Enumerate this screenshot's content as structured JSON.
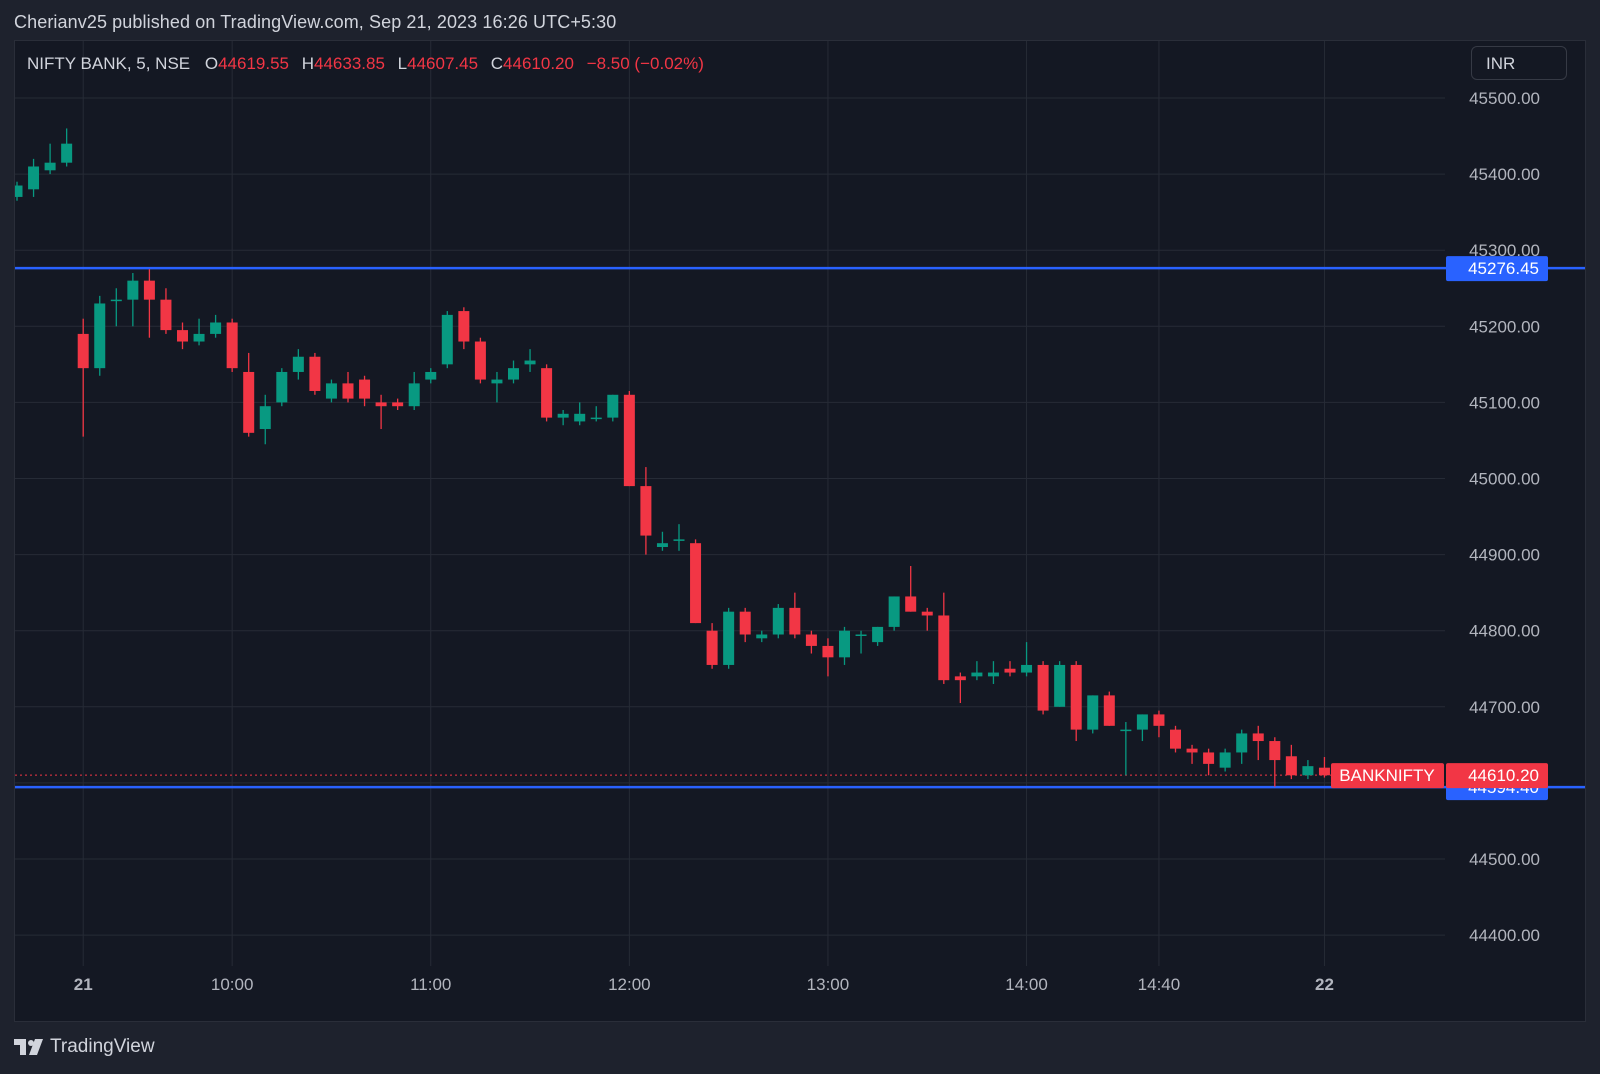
{
  "header": {
    "text": "Cherianv25 published on TradingView.com, Sep 21, 2023 16:26 UTC+5:30"
  },
  "legend": {
    "symbol": "NIFTY BANK, 5, NSE",
    "o_label": "O",
    "o_value": "44619.55",
    "h_label": "H",
    "h_value": "44633.85",
    "l_label": "L",
    "l_value": "44607.45",
    "c_label": "C",
    "c_value": "44610.20",
    "change": "−8.50 (−0.02%)"
  },
  "currency_button": "INR",
  "footer": {
    "brand": "TradingView"
  },
  "colors": {
    "up": "#089981",
    "down": "#f23645",
    "line": "#2962ff",
    "grid": "#262b36",
    "bg": "#141823"
  },
  "chart_data": {
    "type": "candlestick",
    "ylim": [
      44350,
      45560
    ],
    "y_ticks": [
      "45500.00",
      "45400.00",
      "45300.00",
      "45200.00",
      "45100.00",
      "45000.00",
      "44900.00",
      "44800.00",
      "44700.00",
      "44600.00",
      "44500.00",
      "44400.00"
    ],
    "x_ticks": [
      {
        "label": "21",
        "slot": 4,
        "bold": true
      },
      {
        "label": "10:00",
        "slot": 13,
        "bold": false
      },
      {
        "label": "11:00",
        "slot": 25,
        "bold": false
      },
      {
        "label": "12:00",
        "slot": 37,
        "bold": false
      },
      {
        "label": "13:00",
        "slot": 49,
        "bold": false
      },
      {
        "label": "14:00",
        "slot": 61,
        "bold": false
      },
      {
        "label": "14:40",
        "slot": 69,
        "bold": false
      },
      {
        "label": "22",
        "slot": 79,
        "bold": true
      }
    ],
    "horizontal_lines": [
      {
        "value": 45276.45,
        "label": "45276.45"
      },
      {
        "value": 44594.4,
        "label": "44594.40"
      }
    ],
    "last_price": {
      "value": 44610.2,
      "label": "44610.20",
      "symbol": "BANKNIFTY"
    },
    "candles": [
      [
        45370,
        45390,
        45365,
        45385
      ],
      [
        45380,
        45420,
        45370,
        45410
      ],
      [
        45405,
        45440,
        45400,
        45415
      ],
      [
        45415,
        45460,
        45410,
        45440
      ],
      [
        45190,
        45210,
        45055,
        45145
      ],
      [
        45145,
        45240,
        45135,
        45230
      ],
      [
        45235,
        45250,
        45200,
        45235
      ],
      [
        45235,
        45270,
        45200,
        45260
      ],
      [
        45260,
        45275,
        45185,
        45235
      ],
      [
        45235,
        45250,
        45190,
        45195
      ],
      [
        45195,
        45205,
        45170,
        45180
      ],
      [
        45180,
        45210,
        45175,
        45190
      ],
      [
        45190,
        45215,
        45185,
        45205
      ],
      [
        45205,
        45210,
        45140,
        45145
      ],
      [
        45140,
        45165,
        45055,
        45060
      ],
      [
        45065,
        45110,
        45045,
        45095
      ],
      [
        45100,
        45145,
        45095,
        45140
      ],
      [
        45140,
        45170,
        45130,
        45160
      ],
      [
        45160,
        45165,
        45110,
        45115
      ],
      [
        45105,
        45130,
        45100,
        45125
      ],
      [
        45125,
        45140,
        45100,
        45105
      ],
      [
        45130,
        45135,
        45095,
        45105
      ],
      [
        45100,
        45110,
        45065,
        45095
      ],
      [
        45100,
        45105,
        45090,
        45095
      ],
      [
        45095,
        45140,
        45090,
        45125
      ],
      [
        45130,
        45145,
        45125,
        45140
      ],
      [
        45150,
        45220,
        45145,
        45215
      ],
      [
        45220,
        45225,
        45170,
        45180
      ],
      [
        45180,
        45185,
        45125,
        45130
      ],
      [
        45125,
        45140,
        45100,
        45130
      ],
      [
        45130,
        45155,
        45125,
        45145
      ],
      [
        45150,
        45170,
        45140,
        45155
      ],
      [
        45145,
        45150,
        45075,
        45080
      ],
      [
        45080,
        45090,
        45070,
        45085
      ],
      [
        45075,
        45100,
        45070,
        45085
      ],
      [
        45080,
        45095,
        45075,
        45080
      ],
      [
        45080,
        45110,
        45075,
        45110
      ],
      [
        45110,
        45115,
        44990,
        44990
      ],
      [
        44990,
        45015,
        44900,
        44925
      ],
      [
        44910,
        44930,
        44905,
        44915
      ],
      [
        44920,
        44940,
        44905,
        44920
      ],
      [
        44915,
        44920,
        44810,
        44810
      ],
      [
        44800,
        44810,
        44750,
        44755
      ],
      [
        44755,
        44830,
        44750,
        44825
      ],
      [
        44825,
        44830,
        44785,
        44795
      ],
      [
        44790,
        44800,
        44785,
        44795
      ],
      [
        44795,
        44835,
        44790,
        44830
      ],
      [
        44830,
        44850,
        44790,
        44795
      ],
      [
        44795,
        44800,
        44770,
        44780
      ],
      [
        44780,
        44790,
        44740,
        44765
      ],
      [
        44765,
        44805,
        44755,
        44800
      ],
      [
        44795,
        44800,
        44770,
        44795
      ],
      [
        44785,
        44805,
        44780,
        44805
      ],
      [
        44805,
        44845,
        44800,
        44845
      ],
      [
        44845,
        44885,
        44825,
        44825
      ],
      [
        44825,
        44830,
        44800,
        44820
      ],
      [
        44820,
        44850,
        44730,
        44735
      ],
      [
        44740,
        44745,
        44705,
        44735
      ],
      [
        44740,
        44760,
        44735,
        44745
      ],
      [
        44740,
        44760,
        44730,
        44745
      ],
      [
        44750,
        44760,
        44740,
        44745
      ],
      [
        44745,
        44785,
        44740,
        44755
      ],
      [
        44755,
        44760,
        44690,
        44695
      ],
      [
        44700,
        44760,
        44700,
        44755
      ],
      [
        44755,
        44760,
        44655,
        44670
      ],
      [
        44670,
        44715,
        44665,
        44715
      ],
      [
        44715,
        44720,
        44675,
        44675
      ],
      [
        44670,
        44680,
        44610,
        44670
      ],
      [
        44670,
        44690,
        44655,
        44690
      ],
      [
        44690,
        44695,
        44660,
        44675
      ],
      [
        44670,
        44675,
        44640,
        44645
      ],
      [
        44645,
        44650,
        44625,
        44640
      ],
      [
        44640,
        44645,
        44610,
        44625
      ],
      [
        44620,
        44645,
        44615,
        44640
      ],
      [
        44640,
        44670,
        44625,
        44665
      ],
      [
        44665,
        44675,
        44630,
        44655
      ],
      [
        44655,
        44660,
        44595,
        44630
      ],
      [
        44635,
        44650,
        44605,
        44610
      ],
      [
        44610,
        44630,
        44605,
        44622
      ],
      [
        44620,
        44634,
        44607,
        44610
      ]
    ]
  }
}
